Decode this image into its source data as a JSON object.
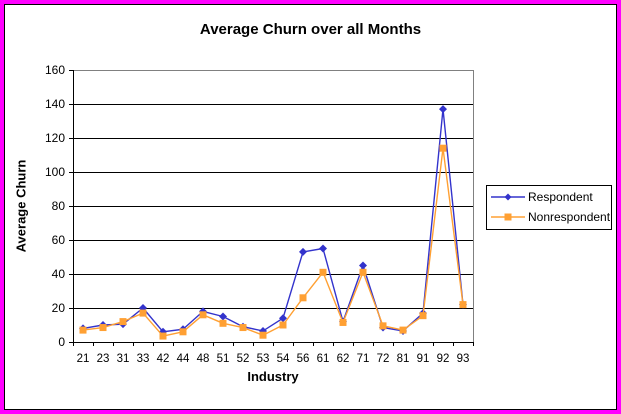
{
  "frame": {
    "outer_border_color": "#FF00FF",
    "inner_border_color": "#000000",
    "background": "#FFFFFF"
  },
  "chart_data": {
    "type": "line",
    "title": "Average Churn over all Months",
    "xlabel": "Industry",
    "ylabel": "Average Churn",
    "categories": [
      "21",
      "23",
      "31",
      "33",
      "42",
      "44",
      "48",
      "51",
      "52",
      "53",
      "54",
      "56",
      "61",
      "62",
      "71",
      "72",
      "81",
      "91",
      "92",
      "93"
    ],
    "series": [
      {
        "name": "Respondent",
        "color": "#3333CC",
        "marker": "diamond",
        "values": [
          8,
          10,
          10.5,
          20,
          6,
          7.5,
          18,
          15,
          9,
          6.5,
          14,
          53,
          55,
          12,
          45,
          8.5,
          6.5,
          17,
          137,
          22
        ]
      },
      {
        "name": "Nonrespondent",
        "color": "#FFA033",
        "marker": "square",
        "values": [
          7,
          8.5,
          12,
          17,
          3.5,
          6,
          16,
          11,
          8.5,
          4,
          10,
          26,
          41,
          11.5,
          41,
          9.5,
          7,
          15.5,
          114,
          22
        ]
      }
    ],
    "ylim": [
      0,
      160
    ],
    "ytick_step": 20,
    "grid": true,
    "gridline_color": "#000000",
    "plot_border_color": "#808080",
    "axis_color": "#000000",
    "legend_position": "right"
  }
}
